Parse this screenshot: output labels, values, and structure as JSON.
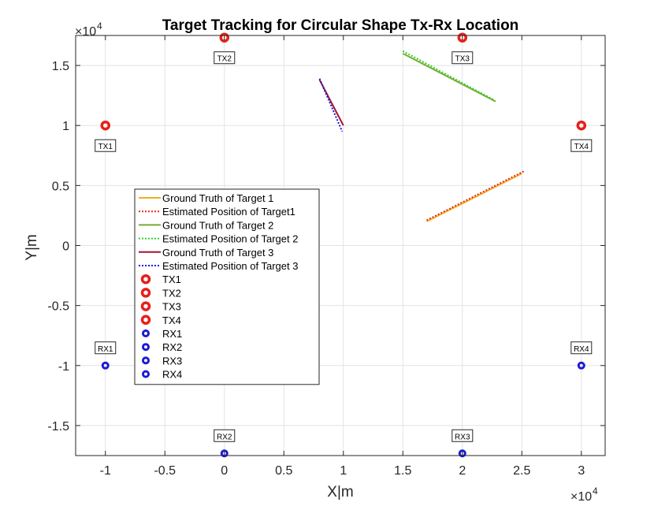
{
  "chart_data": {
    "type": "line",
    "title": "Target Tracking for Circular Shape Tx-Rx Location",
    "xlabel": "X|m",
    "ylabel": "Y|m",
    "x_exponent_base": "×10",
    "x_exponent_power": "4",
    "y_exponent_base": "×10",
    "y_exponent_power": "4",
    "xlim": [
      -12500,
      32000
    ],
    "ylim": [
      -17500,
      17500
    ],
    "x_ticks": [
      -10000,
      -5000,
      0,
      5000,
      10000,
      15000,
      20000,
      25000,
      30000
    ],
    "x_tick_labels": [
      "-1",
      "-0.5",
      "0",
      "0.5",
      "1",
      "1.5",
      "2",
      "2.5",
      "3"
    ],
    "y_ticks": [
      -15000,
      -10000,
      -5000,
      0,
      5000,
      10000,
      15000
    ],
    "y_tick_labels": [
      "-1.5",
      "-1",
      "-0.5",
      "0",
      "0.5",
      "1",
      "1.5"
    ],
    "grid": true,
    "legend_position": "left-center",
    "series": [
      {
        "name": "Ground Truth of Target 1",
        "color": "#edb120",
        "style": "solid",
        "x": [
          17000,
          25000
        ],
        "y": [
          2000,
          6000
        ]
      },
      {
        "name": "Estimated Position of Target1",
        "color": "#e8281e",
        "style": "dotted",
        "x": [
          17000,
          25200
        ],
        "y": [
          2100,
          6200
        ]
      },
      {
        "name": "Ground Truth of Target 2",
        "color": "#77ac30",
        "style": "solid",
        "x": [
          15000,
          22800
        ],
        "y": [
          16000,
          12000
        ]
      },
      {
        "name": "Estimated Position of Target 2",
        "color": "#2ed12e",
        "style": "dotted",
        "x": [
          15000,
          22700
        ],
        "y": [
          16200,
          12100
        ]
      },
      {
        "name": "Ground Truth of Target 3",
        "color": "#a2142f",
        "style": "solid",
        "x": [
          8000,
          10000
        ],
        "y": [
          13800,
          10000
        ]
      },
      {
        "name": "Estimated Position of Target 3",
        "color": "#1a1ad6",
        "style": "dotted",
        "x": [
          8000,
          9900
        ],
        "y": [
          13900,
          9500
        ]
      }
    ],
    "stations": [
      {
        "name": "TX1",
        "kind": "tx",
        "color": "#e6201a",
        "x": -10000,
        "y": 10000
      },
      {
        "name": "TX2",
        "kind": "tx",
        "color": "#e6201a",
        "x": 0,
        "y": 17320
      },
      {
        "name": "TX3",
        "kind": "tx",
        "color": "#e6201a",
        "x": 20000,
        "y": 17320
      },
      {
        "name": "TX4",
        "kind": "tx",
        "color": "#e6201a",
        "x": 30000,
        "y": 10000
      },
      {
        "name": "RX1",
        "kind": "rx",
        "color": "#1a1ad6",
        "x": -10000,
        "y": -10000
      },
      {
        "name": "RX2",
        "kind": "rx",
        "color": "#1a1ad6",
        "x": 0,
        "y": -17320
      },
      {
        "name": "RX3",
        "kind": "rx",
        "color": "#1a1ad6",
        "x": 20000,
        "y": -17320
      },
      {
        "name": "RX4",
        "kind": "rx",
        "color": "#1a1ad6",
        "x": 30000,
        "y": -10000
      }
    ]
  }
}
